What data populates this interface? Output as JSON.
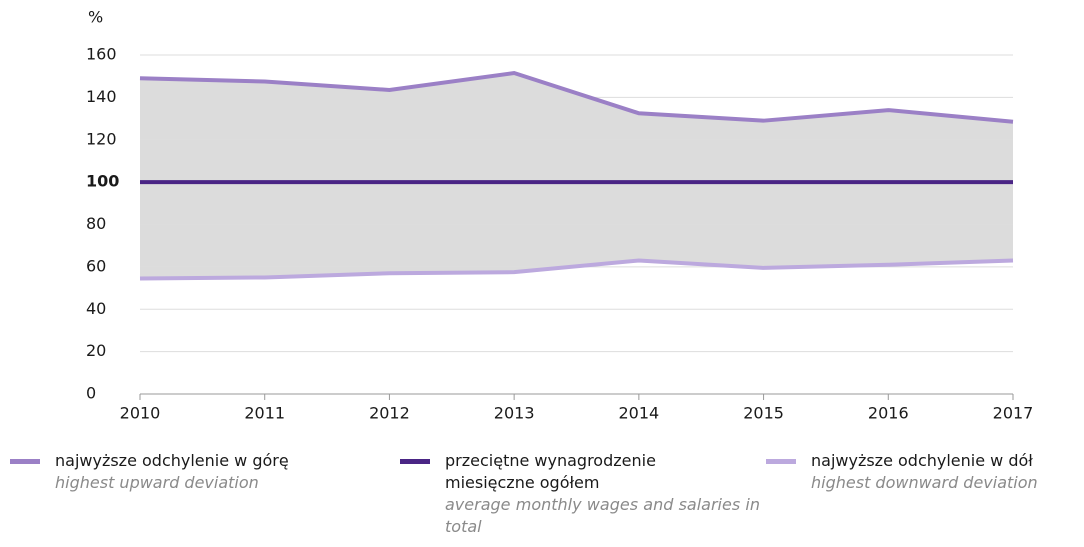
{
  "chart_data": {
    "type": "line",
    "y_unit": "%",
    "x": [
      2010,
      2011,
      2012,
      2013,
      2014,
      2015,
      2016,
      2017
    ],
    "xlim": [
      2010,
      2017
    ],
    "xticks": [
      2010,
      2011,
      2012,
      2013,
      2014,
      2015,
      2016,
      2017
    ],
    "ylim": [
      0,
      160
    ],
    "yticks": [
      0,
      20,
      40,
      60,
      80,
      100,
      120,
      140,
      160
    ],
    "grid": true,
    "band_fill": "#dcdcdc",
    "series": [
      {
        "name": "najwyższe odchylenie w górę",
        "subtitle": "highest upward deviation",
        "color": "#9b80c6",
        "values": [
          149,
          147.5,
          143.5,
          151.5,
          132.5,
          129,
          134,
          128.5
        ]
      },
      {
        "name": "przeciętne wynagrodzenie miesięczne ogółem",
        "subtitle": "average monthly wages and salaries in total",
        "color": "#4a2585",
        "values": [
          100,
          100,
          100,
          100,
          100,
          100,
          100,
          100
        ]
      },
      {
        "name": "najwyższe odchylenie w dół",
        "subtitle": "highest downward deviation",
        "color": "#bca9de",
        "values": [
          54.5,
          55,
          57,
          57.5,
          63,
          59.5,
          61,
          63
        ]
      }
    ]
  }
}
